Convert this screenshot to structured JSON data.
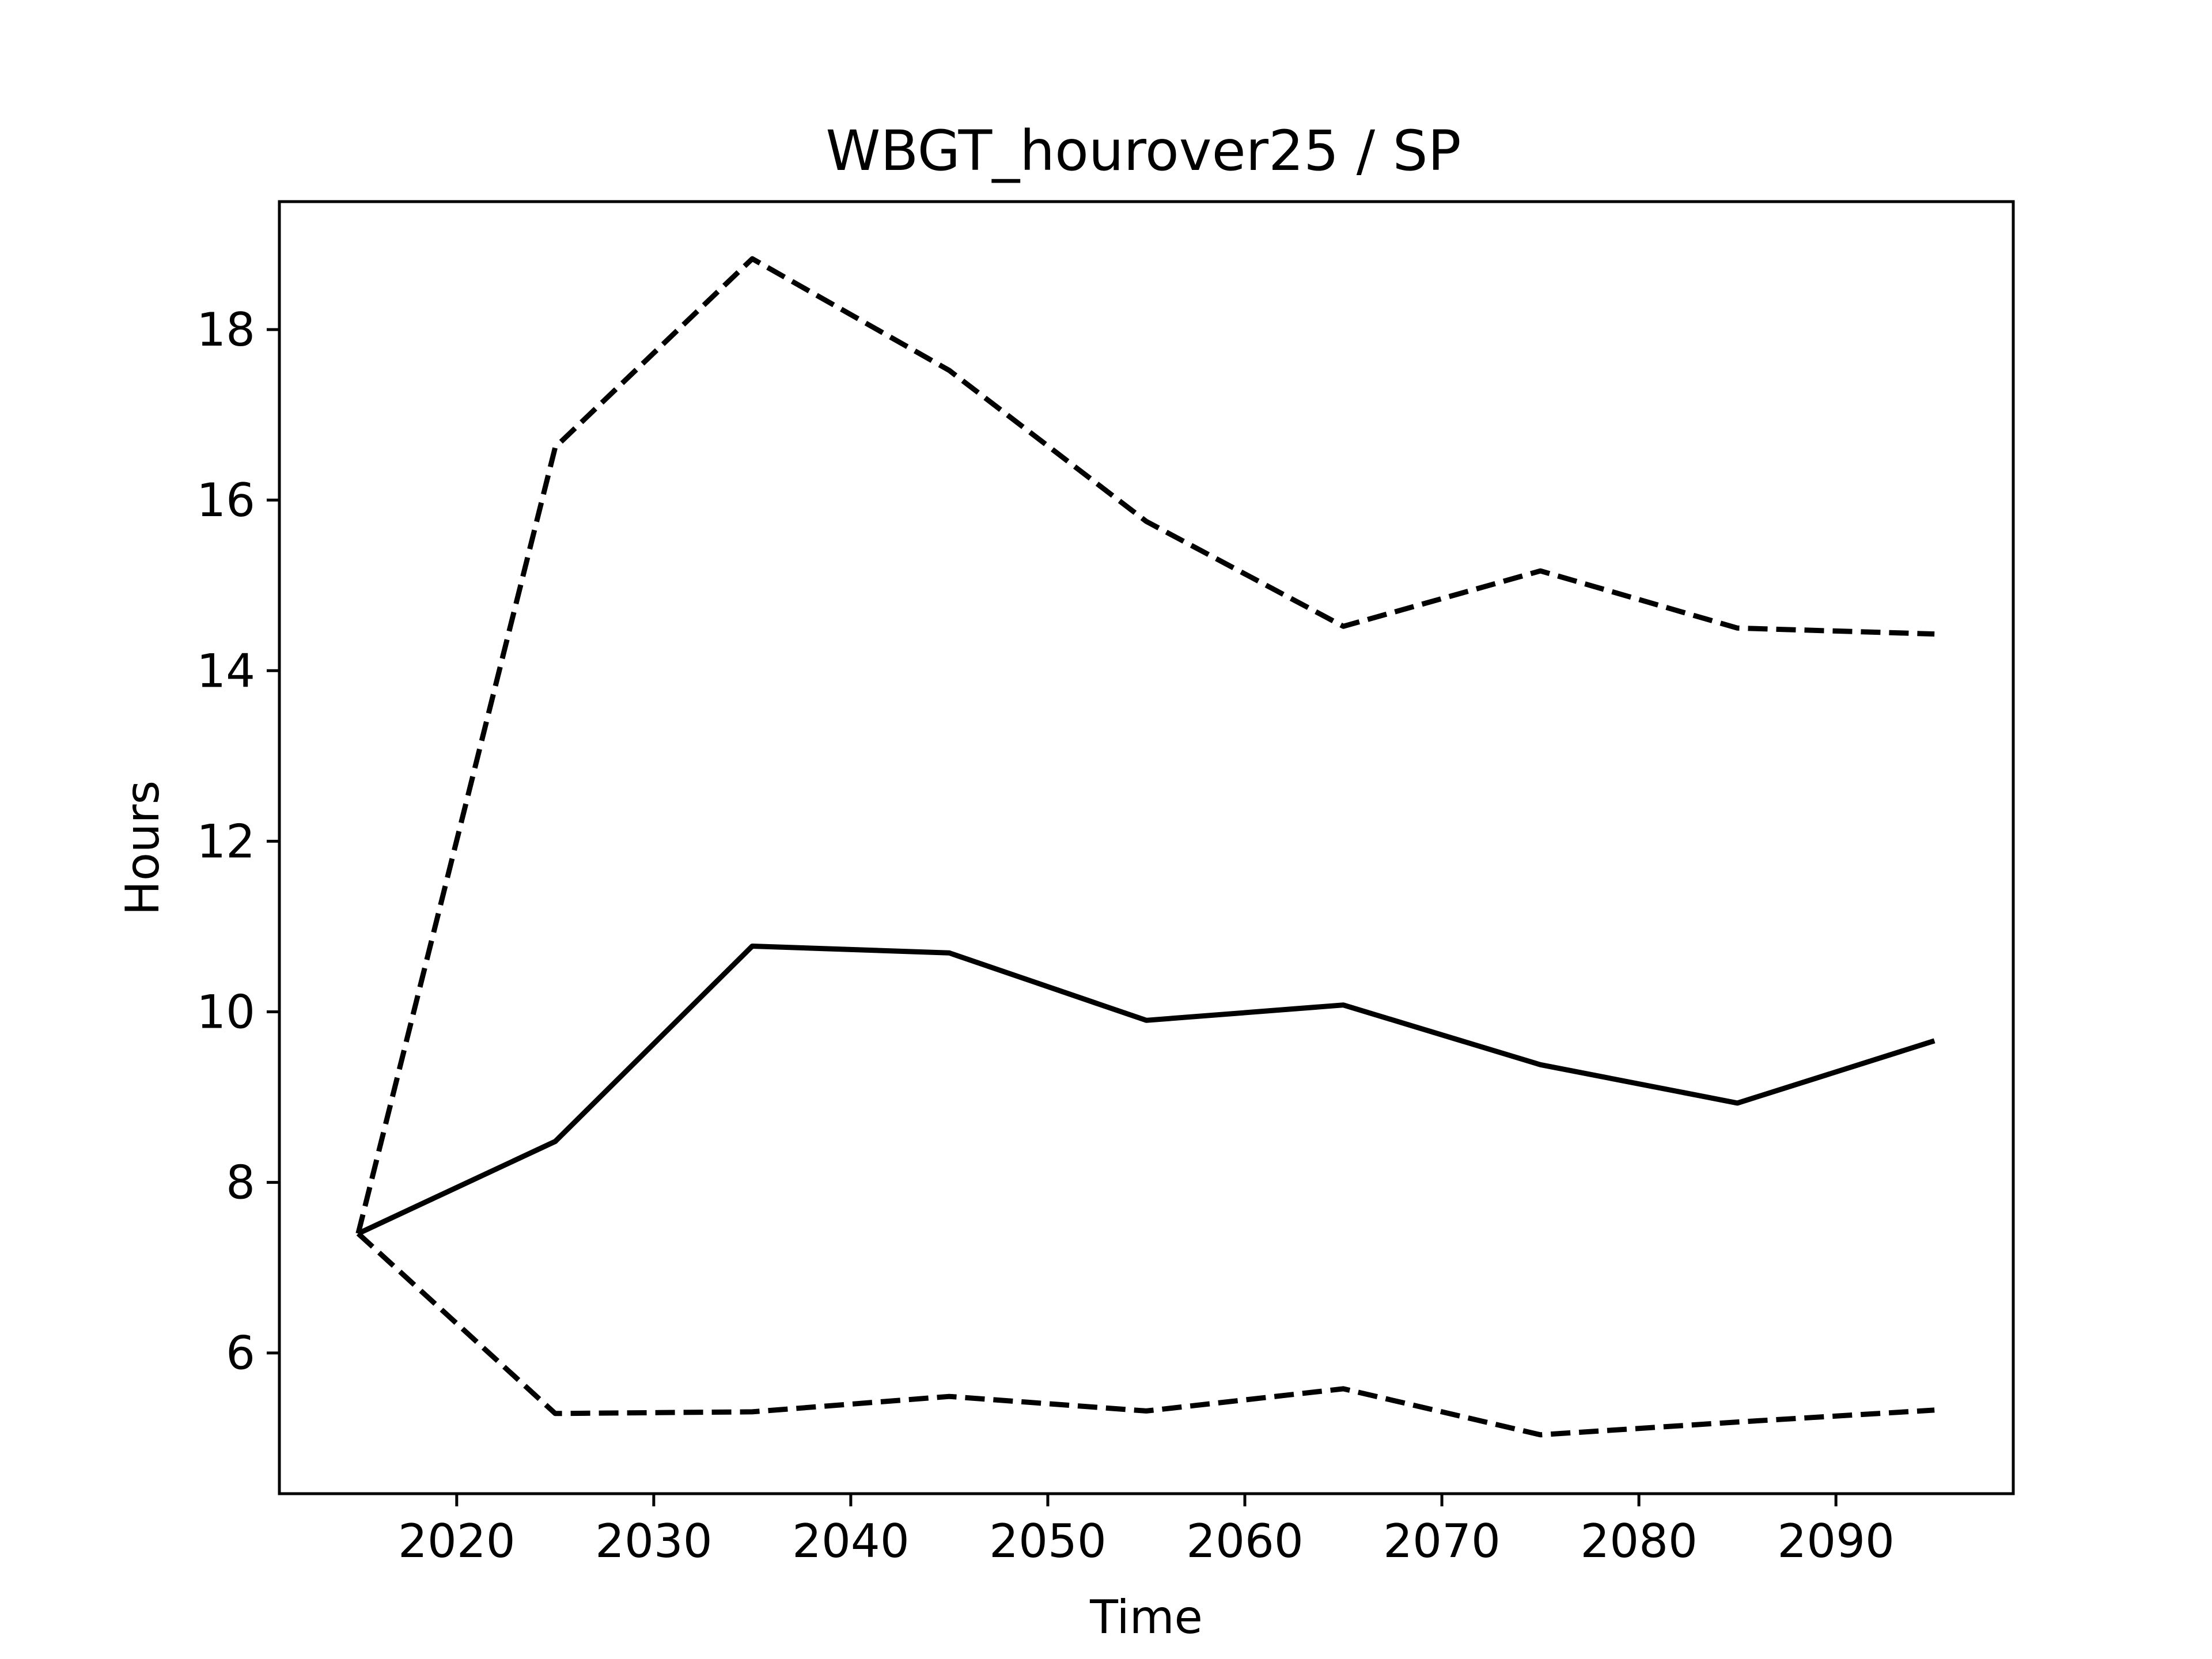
{
  "chart_data": {
    "type": "line",
    "title": "WBGT_hourover25 / SP",
    "xlabel": "Time",
    "ylabel": "Hours",
    "xlim": [
      2011,
      2099
    ],
    "ylim": [
      4.35,
      19.5
    ],
    "xticks": [
      2020,
      2030,
      2040,
      2050,
      2060,
      2070,
      2080,
      2090
    ],
    "yticks": [
      6,
      8,
      10,
      12,
      14,
      16,
      18
    ],
    "grid": false,
    "x": [
      2015,
      2025,
      2035,
      2045,
      2055,
      2065,
      2075,
      2085,
      2095
    ],
    "series": [
      {
        "style": "solid",
        "color": "#000000",
        "values": [
          7.4,
          8.48,
          10.77,
          10.69,
          9.9,
          10.08,
          9.38,
          8.93,
          9.66
        ]
      },
      {
        "style": "dashed",
        "color": "#000000",
        "values": [
          7.4,
          16.62,
          18.83,
          17.52,
          15.75,
          14.52,
          15.17,
          14.5,
          14.43
        ]
      },
      {
        "style": "dashed",
        "color": "#000000",
        "values": [
          7.4,
          5.29,
          5.31,
          5.49,
          5.32,
          5.58,
          5.04,
          5.19,
          5.33
        ]
      }
    ]
  }
}
